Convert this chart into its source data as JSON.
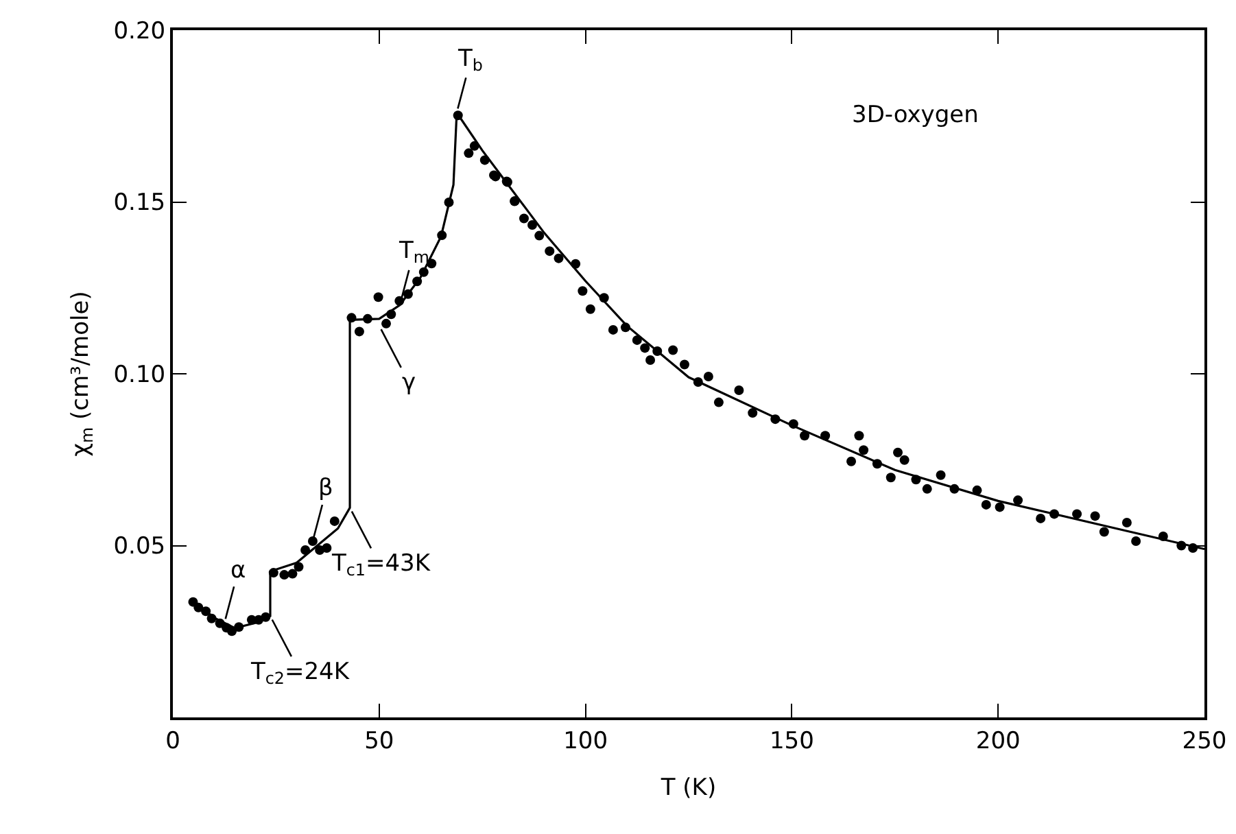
{
  "chart_data": {
    "type": "scatter",
    "xlabel": "T (K)",
    "ylabel": "χ$_{m}$ (cm³/mole)",
    "xlim": [
      0,
      250
    ],
    "xticks": [
      0,
      50,
      100,
      150,
      200,
      250
    ],
    "ylim": [
      0,
      0.2
    ],
    "yticks": [
      0.05,
      {
        "value": 0.1,
        "label": "0.10"
      },
      0.15,
      {
        "value": 0.2,
        "label": "0.20"
      }
    ],
    "grid": false,
    "series": [
      {
        "color": "#000000",
        "marker": "circle",
        "x": [
          4.9,
          6.2,
          8.0,
          9.4,
          11.4,
          13.0,
          14.3,
          16.0,
          19.1,
          20.8,
          22.5,
          24.4,
          27.0,
          29.0,
          30.5,
          32.1,
          33.9,
          35.6,
          37.3,
          39.2,
          43.3,
          45.2,
          47.2,
          49.8,
          51.7,
          52.9,
          54.9,
          57.0,
          59.2,
          60.8,
          62.7,
          65.2,
          66.9,
          69.1,
          71.7,
          73.1,
          75.6,
          77.8,
          78.2,
          80.9,
          81.1,
          82.8,
          82.9,
          85.1,
          87.1,
          88.8,
          91.3,
          93.5,
          97.6,
          99.3,
          101.2,
          104.5,
          106.7,
          109.7,
          112.5,
          114.4,
          115.7,
          117.4,
          121.2,
          124.0,
          127.3,
          129.8,
          132.3,
          137.2,
          140.5,
          146.0,
          150.4,
          153.1,
          158.1,
          164.4,
          166.3,
          167.4,
          170.7,
          174.0,
          175.7,
          177.3,
          180.1,
          182.8,
          186.1,
          189.4,
          194.9,
          197.1,
          200.4,
          204.8,
          210.3,
          213.6,
          219.1,
          223.5,
          225.7,
          231.2,
          233.4,
          240.0,
          244.4,
          247.2
        ],
        "values": [
          0.0336,
          0.032,
          0.0309,
          0.0288,
          0.0274,
          0.0261,
          0.0251,
          0.0263,
          0.0284,
          0.0284,
          0.0292,
          0.0421,
          0.0415,
          0.0418,
          0.0438,
          0.0487,
          0.0513,
          0.0487,
          0.0493,
          0.0571,
          0.1163,
          0.1123,
          0.116,
          0.1223,
          0.1146,
          0.1173,
          0.1212,
          0.1232,
          0.1269,
          0.1296,
          0.1321,
          0.1403,
          0.1499,
          0.1752,
          0.1642,
          0.1663,
          0.1622,
          0.1578,
          0.1574,
          0.156,
          0.1558,
          0.1502,
          0.1503,
          0.1452,
          0.1433,
          0.1402,
          0.1357,
          0.1336,
          0.132,
          0.1241,
          0.1188,
          0.1221,
          0.1128,
          0.1135,
          0.1098,
          0.1075,
          0.104,
          0.1066,
          0.1069,
          0.1027,
          0.0976,
          0.0992,
          0.0917,
          0.0952,
          0.0886,
          0.0868,
          0.0854,
          0.082,
          0.082,
          0.0745,
          0.082,
          0.0778,
          0.0738,
          0.0698,
          0.0771,
          0.0749,
          0.0692,
          0.0665,
          0.0705,
          0.0665,
          0.0661,
          0.0619,
          0.0612,
          0.0632,
          0.0579,
          0.0592,
          0.0592,
          0.0586,
          0.054,
          0.0567,
          0.0513,
          0.0527,
          0.05,
          0.0493
        ]
      },
      {
        "type": "line",
        "color": "#000000",
        "marker": "none",
        "line_style": "solid",
        "x": [
          5,
          10,
          15,
          20,
          23.6,
          23.6,
          30,
          35,
          40,
          42.9,
          42.9,
          50,
          55,
          60,
          65,
          68,
          68.8,
          75,
          80,
          90,
          100,
          110,
          125,
          150,
          175,
          200,
          225,
          250
        ],
        "values": [
          0.034,
          0.029,
          0.026,
          0.0275,
          0.0295,
          0.0425,
          0.045,
          0.05,
          0.055,
          0.061,
          0.1157,
          0.116,
          0.12,
          0.128,
          0.14,
          0.155,
          0.176,
          0.165,
          0.157,
          0.141,
          0.127,
          0.114,
          0.099,
          0.085,
          0.072,
          0.063,
          0.056,
          0.049
        ]
      }
    ],
    "annotations": [
      {
        "text": "T$_{b}$",
        "x": 68.8,
        "y": 0.176
      },
      {
        "text": "T$_{m}$",
        "x": 55,
        "y": 0.12
      },
      {
        "text": "γ",
        "x": 50,
        "y": 0.114
      },
      {
        "text": "α",
        "x": 12.5,
        "y": 0.0275
      },
      {
        "text": "β",
        "x": 33.9,
        "y": 0.0513
      },
      {
        "text": "T$_{c1}$=43K",
        "x": 42.9,
        "y": 0.061
      },
      {
        "text": "T$_{c2}$=24K",
        "x": 23.6,
        "y": 0.0295
      },
      "3D-oxygen"
    ]
  }
}
